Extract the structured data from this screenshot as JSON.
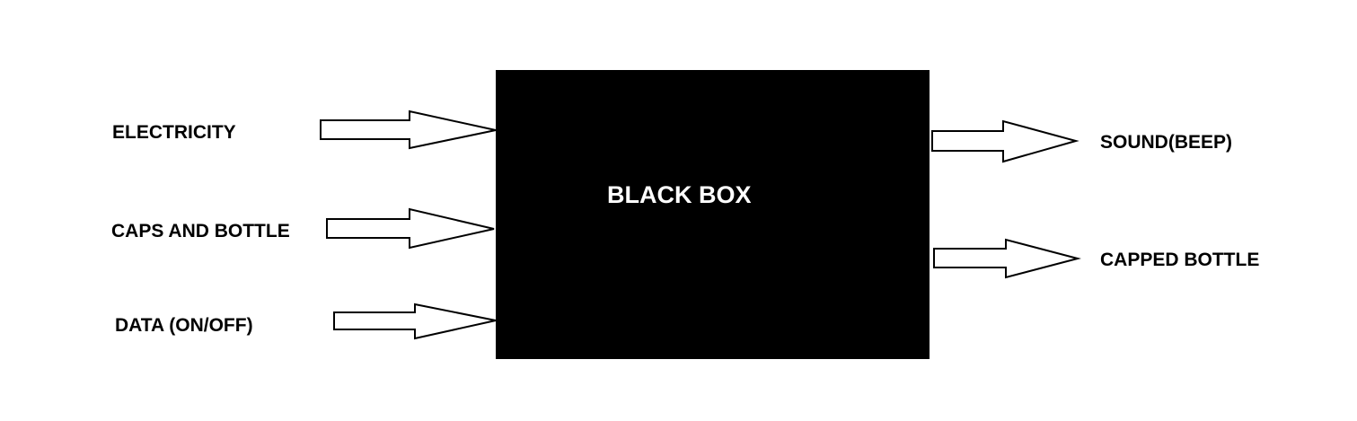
{
  "box": {
    "label": "BLACK BOX",
    "color": "#000000"
  },
  "inputs": [
    {
      "label": "ELECTRICITY"
    },
    {
      "label": "CAPS AND BOTTLE"
    },
    {
      "label": "DATA (ON/OFF)"
    }
  ],
  "outputs": [
    {
      "label": "SOUND(BEEP)"
    },
    {
      "label": "CAPPED BOTTLE"
    }
  ],
  "arrow_icon": "hollow-right-arrow-icon"
}
